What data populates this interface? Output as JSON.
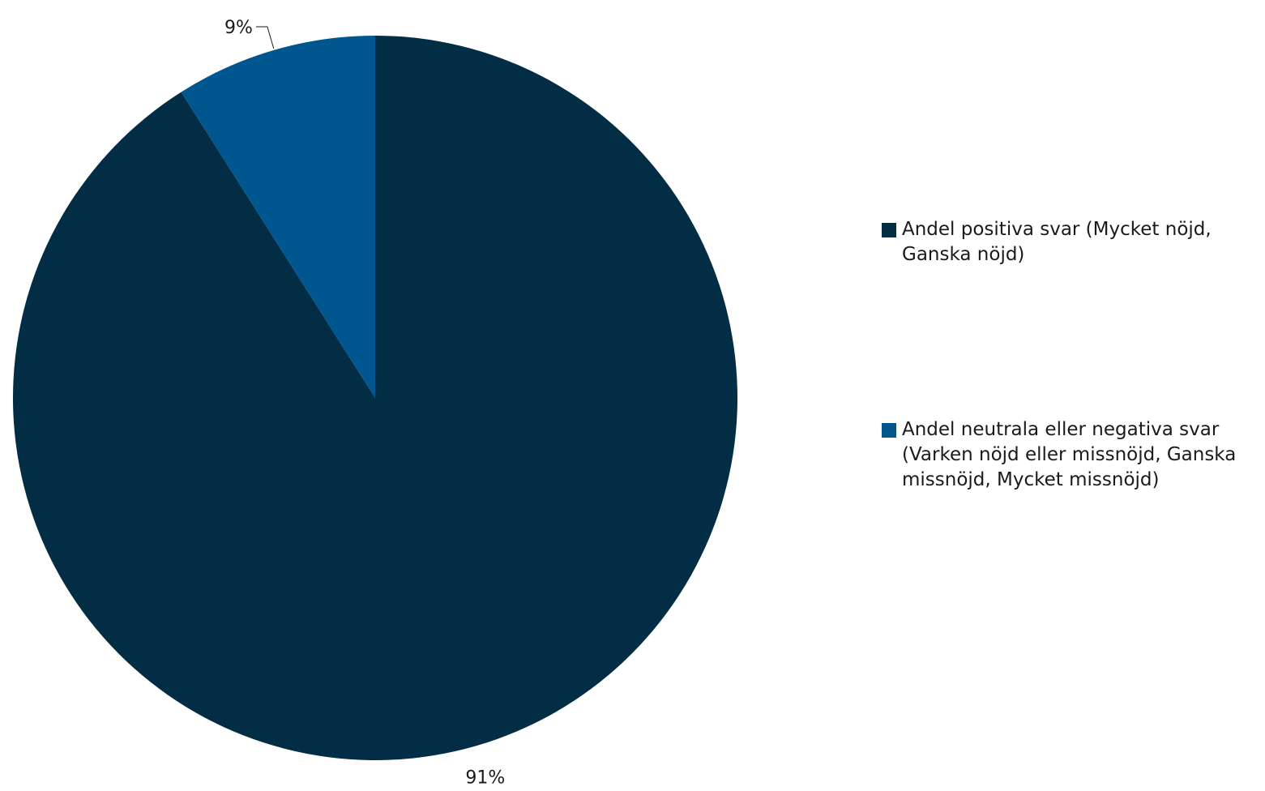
{
  "chart_data": {
    "type": "pie",
    "categories": [
      "Andel positiva svar (Mycket nöjd, Ganska nöjd)",
      "Andel neutrala eller negativa svar (Varken nöjd eller missnöjd, Ganska missnöjd, Mycket missnöjd)"
    ],
    "values": [
      91,
      9
    ],
    "data_labels": [
      "91%",
      "9%"
    ],
    "colors": [
      "#032c45",
      "#00568f"
    ],
    "legend_position": "right",
    "start": "top, clockwise"
  }
}
